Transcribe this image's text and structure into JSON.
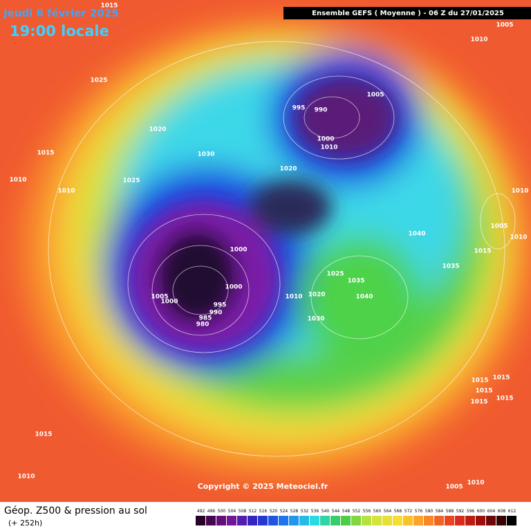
{
  "header": {
    "date": "Jeudi 6 février 2025",
    "time": "19:00 locale",
    "run": "Ensemble GEFS  ( Moyenne )  -  06 Z du 27/01/2025"
  },
  "copyright": "Copyright © 2025 Meteociel.fr",
  "footer": {
    "title": "Géop. Z500 & pression au sol",
    "lead": "(+ 252h)"
  },
  "scale": [
    492,
    496,
    500,
    504,
    508,
    512,
    516,
    520,
    524,
    528,
    532,
    536,
    540,
    544,
    548,
    552,
    556,
    560,
    564,
    568,
    572,
    576,
    580,
    584,
    588,
    592,
    596,
    600,
    604,
    608,
    612
  ],
  "isobar_labels": [
    1015,
    1005,
    1010,
    1025,
    1005,
    995,
    990,
    1020,
    1000,
    1010,
    1015,
    1030,
    1020,
    1025,
    1010,
    1010,
    1010,
    1005,
    1010,
    1040,
    1000,
    1015,
    1035,
    1025,
    1035,
    1000,
    1010,
    1020,
    1040,
    1005,
    1000,
    995,
    990,
    985,
    980,
    1030,
    1015,
    1015,
    1015,
    1015,
    1015,
    1015,
    1010,
    1010,
    1005
  ]
}
